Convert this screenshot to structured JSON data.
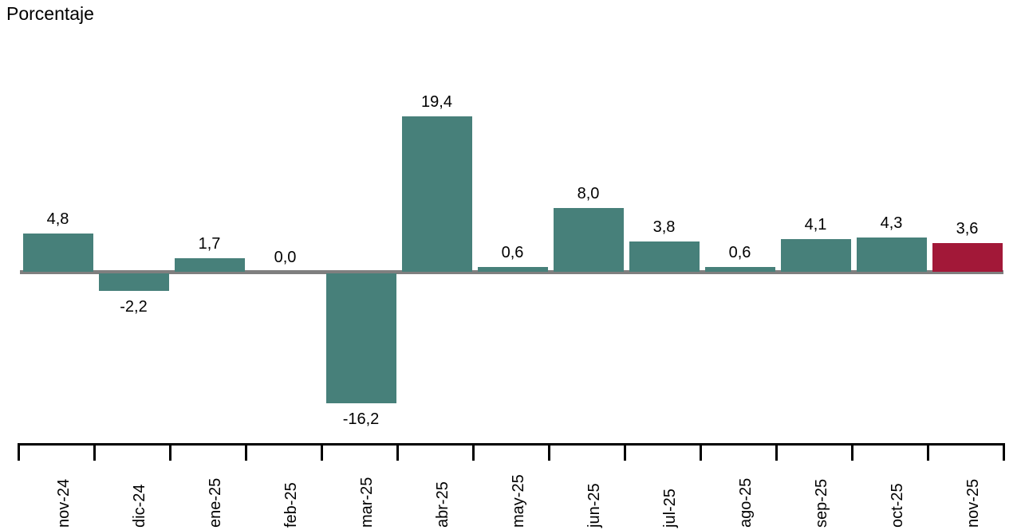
{
  "chart_data": {
    "type": "bar",
    "title": "Porcentaje",
    "categories": [
      "nov-24",
      "dic-24",
      "ene-25",
      "feb-25",
      "mar-25",
      "abr-25",
      "may-25",
      "jun-25",
      "jul-25",
      "ago-25",
      "sep-25",
      "oct-25",
      "nov-25"
    ],
    "values": [
      4.8,
      -2.2,
      1.7,
      0.0,
      -16.2,
      19.4,
      0.6,
      8.0,
      3.8,
      0.6,
      4.1,
      4.3,
      3.6
    ],
    "value_labels": [
      "4,8",
      "-2,2",
      "1,7",
      "0,0",
      "-16,2",
      "19,4",
      "0,6",
      "8,0",
      "3,8",
      "0,6",
      "4,1",
      "4,3",
      "3,6"
    ],
    "xlabel": "",
    "ylabel": "Porcentaje",
    "ylim": [
      -18,
      21
    ],
    "grid": false,
    "legend": null,
    "colors": {
      "bar_default": "#47807a",
      "bar_highlight": "#a21838",
      "highlight_index": 12,
      "zero_line": "#7f7f7f",
      "axis": "#000000",
      "text": "#000000"
    }
  }
}
